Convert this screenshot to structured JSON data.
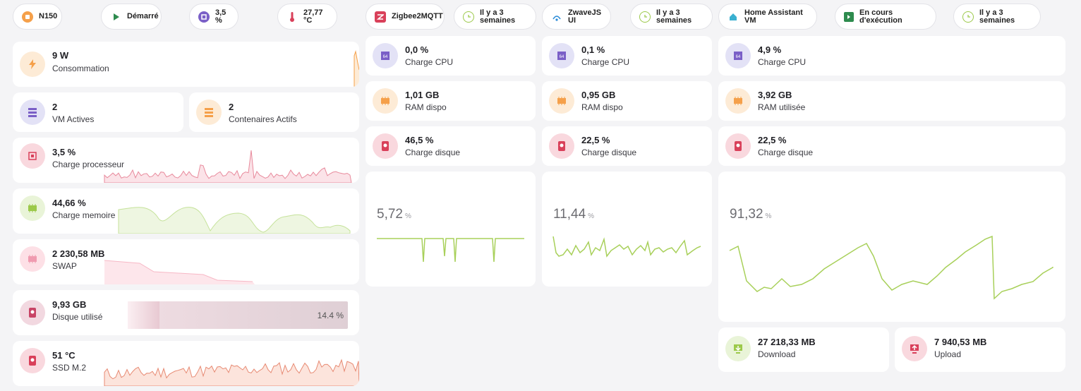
{
  "colors": {
    "orange": "#f5a04a",
    "purple": "#7a5fc7",
    "red": "#d9405a",
    "green": "#9cc94a",
    "orangeBg": "#fdebd6",
    "purpleBg": "#e3e2f6",
    "redBg": "#f9d8de",
    "greenBg": "#e9f4d8",
    "pinkBg": "#fde0e6",
    "blueBg": "#d8f0f4"
  },
  "chips": [
    {
      "icon": "chip-orange-icon",
      "text": "N150"
    },
    {
      "icon": "play-icon",
      "text": "Démarré"
    },
    {
      "icon": "cpu-icon",
      "text": "3,5 %"
    },
    {
      "icon": "thermometer-icon",
      "text": "27,77 °C"
    },
    {
      "icon": "zigbee-icon",
      "text": "Zigbee2MQTT"
    },
    {
      "icon": "clock-icon",
      "text": "Il y a 3 semaines"
    },
    {
      "icon": "zwave-icon",
      "text": "ZwaveJS UI"
    },
    {
      "icon": "clock-icon",
      "text": "Il y a 3 semaines"
    },
    {
      "icon": "home-icon",
      "text": "Home Assistant VM"
    },
    {
      "icon": "terminal-icon",
      "text": "En cours d'exécution"
    },
    {
      "icon": "clock-icon",
      "text": "Il y a 3 semaines"
    }
  ],
  "left": {
    "power": {
      "value": "9 W",
      "label": "Consommation"
    },
    "vms": {
      "value": "2",
      "label": "VM Actives"
    },
    "containers": {
      "value": "2",
      "label": "Contenaires Actifs"
    },
    "cpu": {
      "value": "3,5 %",
      "label": "Charge processeur"
    },
    "mem": {
      "value": "44,66 %",
      "label": "Charge memoire"
    },
    "swap": {
      "value": "2 230,58 MB",
      "label": "SWAP"
    },
    "disk": {
      "value": "9,93 GB",
      "label": "Disque utilisé",
      "percent": 14.4,
      "bar_text": "14.4 %"
    },
    "ssd": {
      "value": "51 °C",
      "label": "SSD M.2"
    }
  },
  "columns": [
    {
      "cpu": {
        "value": "0,0 %",
        "label": "Charge CPU"
      },
      "ram": {
        "value": "1,01 GB",
        "label": "RAM dispo"
      },
      "disk": {
        "value": "46,5 %",
        "label": "Charge disque"
      },
      "graph": {
        "value": "5,72",
        "unit": "%"
      }
    },
    {
      "cpu": {
        "value": "0,1 %",
        "label": "Charge CPU"
      },
      "ram": {
        "value": "0,95 GB",
        "label": "RAM dispo"
      },
      "disk": {
        "value": "22,5 %",
        "label": "Charge disque"
      },
      "graph": {
        "value": "11,44",
        "unit": "%"
      }
    },
    {
      "cpu": {
        "value": "4,9 %",
        "label": "Charge CPU"
      },
      "ram": {
        "value": "3,92 GB",
        "label": "RAM utilisée"
      },
      "disk": {
        "value": "22,5 %",
        "label": "Charge disque"
      },
      "graph": {
        "value": "91,32",
        "unit": "%"
      }
    }
  ],
  "network": {
    "download": {
      "value": "27 218,33 MB",
      "label": "Download"
    },
    "upload": {
      "value": "7 940,53 MB",
      "label": "Upload"
    }
  }
}
